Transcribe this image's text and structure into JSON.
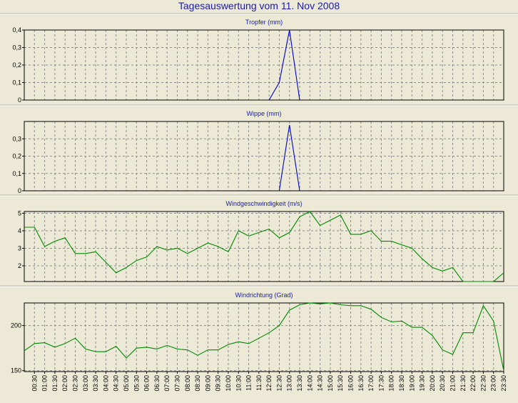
{
  "page_title": "Tagesauswertung vom 11. Nov 2008",
  "colors": {
    "background": "#ecead6",
    "title": "#1a1aa6",
    "rain": "#0000cc",
    "wind": "#008800",
    "grid": "#888888"
  },
  "chart_data": [
    {
      "type": "line",
      "title": "Tropfer (mm)",
      "ylim": [
        0,
        0.4
      ],
      "yticks": [
        "0",
        "0,1",
        "0,2",
        "0,3",
        "0,4"
      ],
      "grid": true,
      "series": [
        {
          "color": "#0000cc",
          "x": [
            "12:00",
            "12:30",
            "13:00",
            "13:30"
          ],
          "values": [
            0,
            0.1,
            0.4,
            0
          ]
        }
      ]
    },
    {
      "type": "line",
      "title": "Wippe (mm)",
      "ylim": [
        0,
        0.4
      ],
      "yticks": [
        "0",
        "0,1",
        "0,2",
        "0,3"
      ],
      "grid": true,
      "series": [
        {
          "color": "#0000cc",
          "x": [
            "12:30",
            "13:00",
            "13:30"
          ],
          "values": [
            0,
            0.38,
            0
          ]
        }
      ]
    },
    {
      "type": "line",
      "title": "Windgeschwindigkeit (m/s)",
      "ylim": [
        1.1,
        5.1
      ],
      "yticks": [
        "2",
        "3",
        "4",
        "5"
      ],
      "grid": true,
      "series": [
        {
          "color": "#008800",
          "x": [
            "00:00",
            "00:30",
            "01:00",
            "01:30",
            "02:00",
            "02:30",
            "03:00",
            "03:30",
            "04:00",
            "04:30",
            "05:00",
            "05:30",
            "06:00",
            "06:30",
            "07:00",
            "07:30",
            "08:00",
            "08:30",
            "09:00",
            "09:30",
            "10:00",
            "10:30",
            "11:00",
            "11:30",
            "12:00",
            "12:30",
            "13:00",
            "13:30",
            "14:00",
            "14:30",
            "15:00",
            "15:30",
            "16:00",
            "16:30",
            "17:00",
            "17:30",
            "18:00",
            "18:30",
            "19:00",
            "19:30",
            "20:00",
            "20:30",
            "21:00",
            "21:30",
            "22:00",
            "22:30",
            "23:00",
            "23:30"
          ],
          "values": [
            4.2,
            4.2,
            3.1,
            3.4,
            3.6,
            2.7,
            2.7,
            2.8,
            2.2,
            1.6,
            1.9,
            2.3,
            2.5,
            3.1,
            2.9,
            3.0,
            2.7,
            3.0,
            3.3,
            3.1,
            2.8,
            4.0,
            3.7,
            3.9,
            4.1,
            3.6,
            3.9,
            4.8,
            5.1,
            4.3,
            4.6,
            4.9,
            3.8,
            3.8,
            4.0,
            3.4,
            3.4,
            3.2,
            3.0,
            2.4,
            1.9,
            1.7,
            1.9,
            1.1,
            1.1,
            1.1,
            1.1,
            1.6
          ]
        }
      ]
    },
    {
      "type": "line",
      "title": "Windrichtung (Grad)",
      "ylim": [
        149,
        225
      ],
      "yticks": [
        "150",
        "200"
      ],
      "grid": true,
      "x_tick_labels": [
        "00:30",
        "01:00",
        "01:30",
        "02:00",
        "02:30",
        "03:00",
        "03:30",
        "04:00",
        "04:30",
        "05:00",
        "05:30",
        "06:00",
        "06:30",
        "07:00",
        "07:30",
        "08:00",
        "08:30",
        "09:00",
        "09:30",
        "10:00",
        "10:30",
        "11:00",
        "11:30",
        "12:00",
        "12:30",
        "13:00",
        "13:30",
        "14:00",
        "14:30",
        "15:00",
        "15:30",
        "16:00",
        "16:30",
        "17:00",
        "17:30",
        "18:00",
        "18:30",
        "19:00",
        "19:30",
        "20:00",
        "20:30",
        "21:00",
        "21:30",
        "22:00",
        "22:30",
        "23:00",
        "23:30"
      ],
      "series": [
        {
          "color": "#008800",
          "x": [
            "00:00",
            "00:30",
            "01:00",
            "01:30",
            "02:00",
            "02:30",
            "03:00",
            "03:30",
            "04:00",
            "04:30",
            "05:00",
            "05:30",
            "06:00",
            "06:30",
            "07:00",
            "07:30",
            "08:00",
            "08:30",
            "09:00",
            "09:30",
            "10:00",
            "10:30",
            "11:00",
            "11:30",
            "12:00",
            "12:30",
            "13:00",
            "13:30",
            "14:00",
            "14:30",
            "15:00",
            "15:30",
            "16:00",
            "16:30",
            "17:00",
            "17:30",
            "18:00",
            "18:30",
            "19:00",
            "19:30",
            "20:00",
            "20:30",
            "21:00",
            "21:30",
            "22:00",
            "22:30",
            "23:00",
            "23:30"
          ],
          "values": [
            172,
            180,
            181,
            176,
            180,
            186,
            174,
            171,
            171,
            177,
            164,
            175,
            176,
            174,
            178,
            174,
            173,
            167,
            173,
            173,
            179,
            182,
            180,
            186,
            192,
            200,
            217,
            223,
            225,
            224,
            225,
            223,
            222,
            222,
            218,
            209,
            204,
            205,
            198,
            198,
            189,
            173,
            168,
            192,
            192,
            222,
            205,
            150
          ]
        }
      ]
    }
  ]
}
